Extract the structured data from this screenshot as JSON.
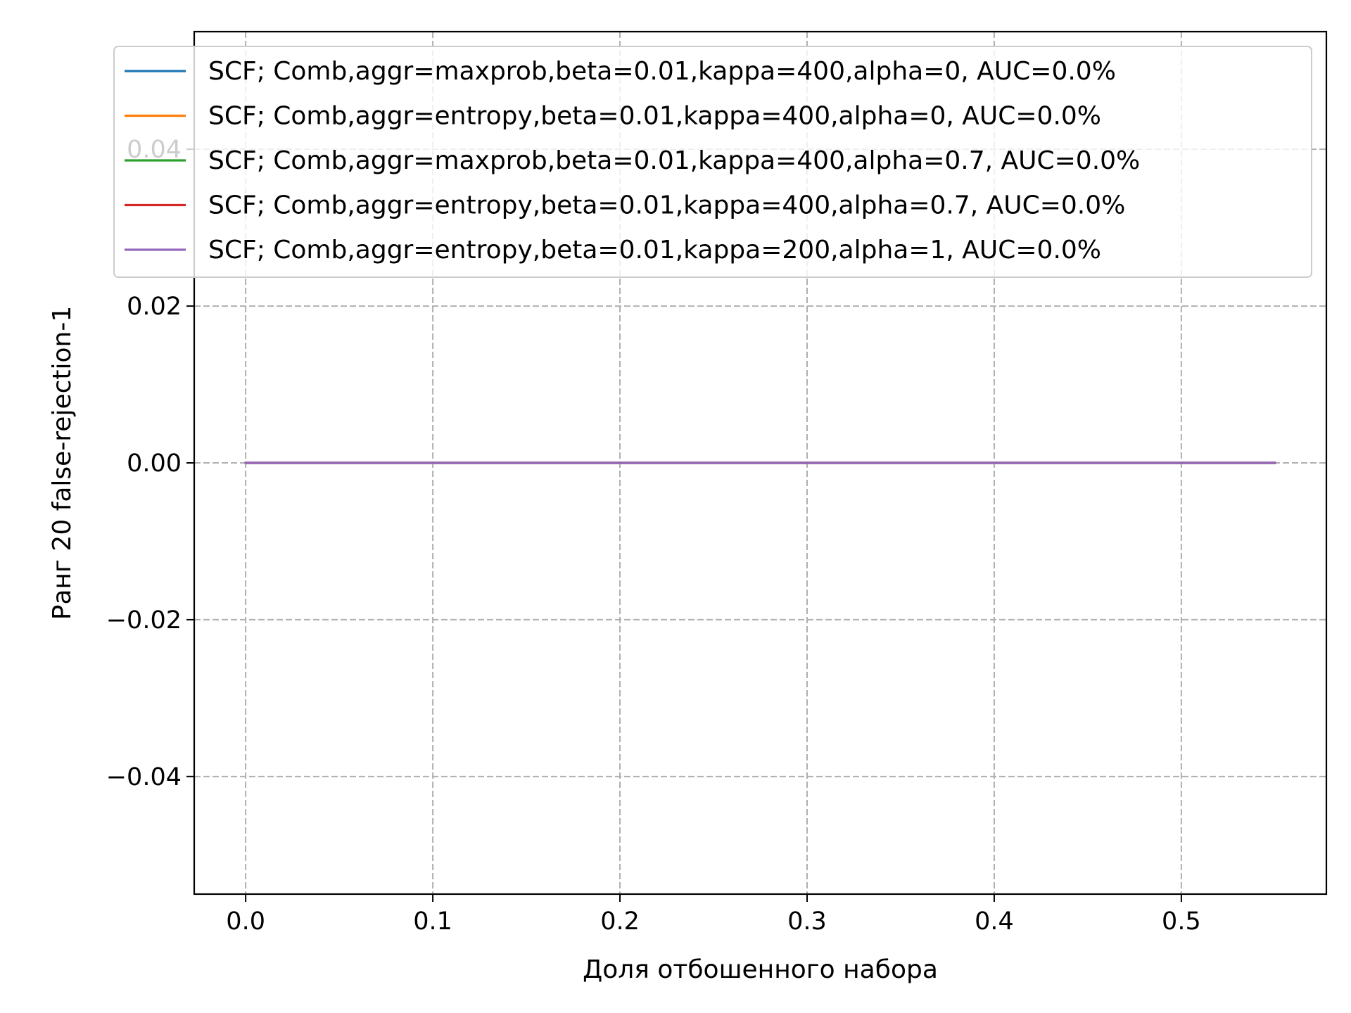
{
  "chart_data": {
    "type": "line",
    "title": "",
    "xlabel": "Доля отбошенного набора",
    "ylabel": "Ранг 20 false-rejection-1",
    "xlim": [
      -0.0275,
      0.5775
    ],
    "ylim": [
      -0.055,
      0.055
    ],
    "xticks": [
      {
        "value": 0.0,
        "label": "0.0"
      },
      {
        "value": 0.1,
        "label": "0.1"
      },
      {
        "value": 0.2,
        "label": "0.2"
      },
      {
        "value": 0.3,
        "label": "0.3"
      },
      {
        "value": 0.4,
        "label": "0.4"
      },
      {
        "value": 0.5,
        "label": "0.5"
      }
    ],
    "yticks": [
      {
        "value": -0.04,
        "label": "−0.04"
      },
      {
        "value": -0.02,
        "label": "−0.02"
      },
      {
        "value": 0.0,
        "label": "0.00"
      },
      {
        "value": 0.02,
        "label": "0.02"
      },
      {
        "value": 0.04,
        "label": "0.04"
      }
    ],
    "grid": true,
    "legend_position": "top",
    "series": [
      {
        "name": "SCF;  Comb,aggr=maxprob,beta=0.01,kappa=400,alpha=0, AUC=0.0%",
        "color": "#1f77b4",
        "x": [
          0.0,
          0.55
        ],
        "y": [
          0.0,
          0.0
        ]
      },
      {
        "name": "SCF;  Comb,aggr=entropy,beta=0.01,kappa=400,alpha=0, AUC=0.0%",
        "color": "#ff7f0e",
        "x": [
          0.0,
          0.55
        ],
        "y": [
          0.0,
          0.0
        ]
      },
      {
        "name": "SCF;  Comb,aggr=maxprob,beta=0.01,kappa=400,alpha=0.7, AUC=0.0%",
        "color": "#2ca02c",
        "x": [
          0.0,
          0.55
        ],
        "y": [
          0.0,
          0.0
        ]
      },
      {
        "name": "SCF;  Comb,aggr=entropy,beta=0.01,kappa=400,alpha=0.7, AUC=0.0%",
        "color": "#d62728",
        "x": [
          0.0,
          0.55
        ],
        "y": [
          0.0,
          0.0
        ]
      },
      {
        "name": "SCF;  Comb,aggr=entropy,beta=0.01,kappa=200,alpha=1, AUC=0.0%",
        "color": "#9467bd",
        "x": [
          0.0,
          0.55
        ],
        "y": [
          0.0,
          0.0
        ]
      }
    ]
  }
}
